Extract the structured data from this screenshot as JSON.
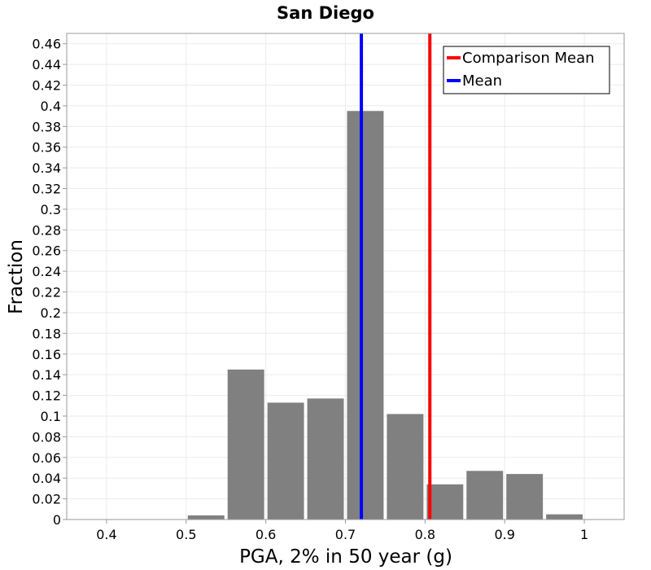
{
  "chart_data": {
    "type": "bar",
    "title": "San Diego",
    "xlabel": "PGA, 2% in 50 year (g)",
    "ylabel": "Fraction",
    "xlim": [
      0.35,
      1.05
    ],
    "ylim": [
      0,
      0.47
    ],
    "xticks": [
      0.4,
      0.5,
      0.6,
      0.7,
      0.8,
      0.9,
      1.0
    ],
    "xtick_labels": [
      "0.4",
      "0.5",
      "0.6",
      "0.7",
      "0.8",
      "0.9",
      "1"
    ],
    "yticks": [
      0,
      0.02,
      0.04,
      0.06,
      0.08,
      0.1,
      0.12,
      0.14,
      0.16,
      0.18,
      0.2,
      0.22,
      0.24,
      0.26,
      0.28,
      0.3,
      0.32,
      0.34,
      0.36,
      0.38,
      0.4,
      0.42,
      0.44,
      0.46
    ],
    "ytick_labels": [
      "0",
      "0.02",
      "0.04",
      "0.06",
      "0.08",
      "0.1",
      "0.12",
      "0.14",
      "0.16",
      "0.18",
      "0.2",
      "0.22",
      "0.24",
      "0.26",
      "0.28",
      "0.3",
      "0.32",
      "0.34",
      "0.36",
      "0.38",
      "0.4",
      "0.42",
      "0.44",
      "0.46"
    ],
    "bin_width": 0.05,
    "bin_centers": [
      0.525,
      0.575,
      0.625,
      0.675,
      0.725,
      0.775,
      0.825,
      0.875,
      0.925,
      0.975
    ],
    "values": [
      0.004,
      0.145,
      0.113,
      0.117,
      0.395,
      0.102,
      0.034,
      0.047,
      0.044,
      0.005
    ],
    "bar_color": "#808080",
    "grid": true,
    "vlines": [
      {
        "name": "Mean",
        "x": 0.72,
        "color": "#0000ff"
      },
      {
        "name": "Comparison Mean",
        "x": 0.806,
        "color": "#ff0000"
      }
    ],
    "legend": {
      "position": "top-right",
      "entries": [
        {
          "label": "Comparison Mean",
          "color": "#ff0000"
        },
        {
          "label": "Mean",
          "color": "#0000ff"
        }
      ]
    }
  }
}
